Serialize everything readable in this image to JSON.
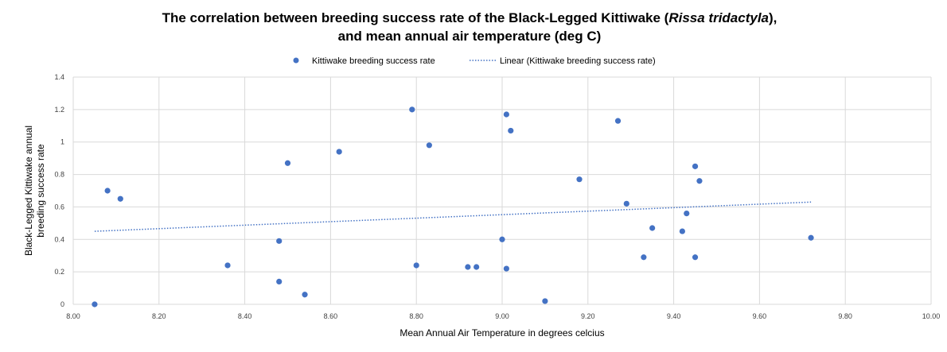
{
  "chart_data": {
    "type": "scatter",
    "title": {
      "prefix": "The correlation between breeding success rate of the Black-Legged Kittiwake (",
      "species": "Rissa tridactyla",
      "suffix": "),",
      "line2": "and mean annual air temperature (deg C)"
    },
    "xlabel": "Mean Annual Air Temperature in degrees celcius",
    "ylabel": [
      "Black-Legged Kittiwake annual",
      "breeding success rate"
    ],
    "xlim": [
      8.0,
      10.0
    ],
    "ylim": [
      0,
      1.4
    ],
    "x_ticks": [
      "8.00",
      "8.20",
      "8.40",
      "8.60",
      "8.80",
      "9.00",
      "9.20",
      "9.40",
      "9.60",
      "9.80",
      "10.00"
    ],
    "y_ticks": [
      "0",
      "0.2",
      "0.4",
      "0.6",
      "0.8",
      "1",
      "1.2",
      "1.4"
    ],
    "grid": true,
    "legend_position": "top",
    "series": [
      {
        "name": "Kittiwake breeding success rate",
        "color": "#4472c4",
        "points": [
          [
            8.05,
            0.0
          ],
          [
            8.08,
            0.7
          ],
          [
            8.11,
            0.65
          ],
          [
            8.36,
            0.24
          ],
          [
            8.48,
            0.39
          ],
          [
            8.48,
            0.14
          ],
          [
            8.5,
            0.87
          ],
          [
            8.54,
            0.06
          ],
          [
            8.62,
            0.94
          ],
          [
            8.79,
            1.2
          ],
          [
            8.8,
            0.24
          ],
          [
            8.83,
            0.98
          ],
          [
            8.92,
            0.23
          ],
          [
            8.94,
            0.23
          ],
          [
            9.0,
            0.4
          ],
          [
            9.01,
            1.17
          ],
          [
            9.01,
            0.22
          ],
          [
            9.02,
            1.07
          ],
          [
            9.1,
            0.02
          ],
          [
            9.18,
            0.77
          ],
          [
            9.27,
            1.13
          ],
          [
            9.29,
            0.62
          ],
          [
            9.33,
            0.29
          ],
          [
            9.35,
            0.47
          ],
          [
            9.42,
            0.45
          ],
          [
            9.43,
            0.56
          ],
          [
            9.45,
            0.85
          ],
          [
            9.45,
            0.29
          ],
          [
            9.46,
            0.76
          ],
          [
            9.72,
            0.41
          ]
        ]
      }
    ],
    "trendline": {
      "name": "Linear (Kittiwake breeding success rate)",
      "color": "#4472c4",
      "from": [
        8.05,
        0.45
      ],
      "to": [
        9.72,
        0.63
      ]
    }
  }
}
